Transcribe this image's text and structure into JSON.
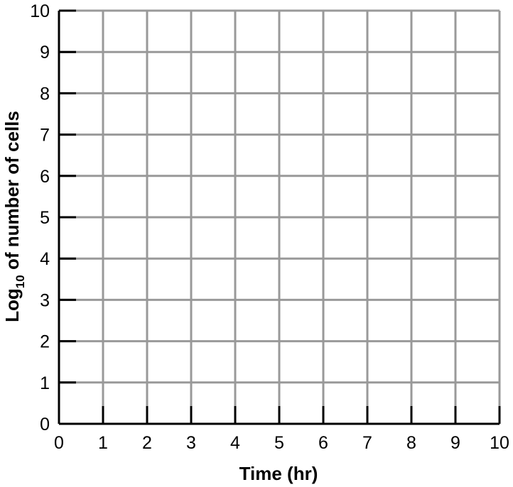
{
  "chart_data": {
    "type": "line",
    "title": "",
    "xlabel": "Time (hr)",
    "ylabel_main": "Log",
    "ylabel_subscript": "10",
    "ylabel_rest": " of number of cells",
    "xlim": [
      0,
      10
    ],
    "ylim": [
      0,
      10
    ],
    "x_ticks": [
      0,
      1,
      2,
      3,
      4,
      5,
      6,
      7,
      8,
      9,
      10
    ],
    "y_ticks": [
      0,
      1,
      2,
      3,
      4,
      5,
      6,
      7,
      8,
      9,
      10
    ],
    "grid": true,
    "series": []
  },
  "colors": {
    "grid": "#999999",
    "axis": "#000000",
    "background": "#ffffff"
  }
}
